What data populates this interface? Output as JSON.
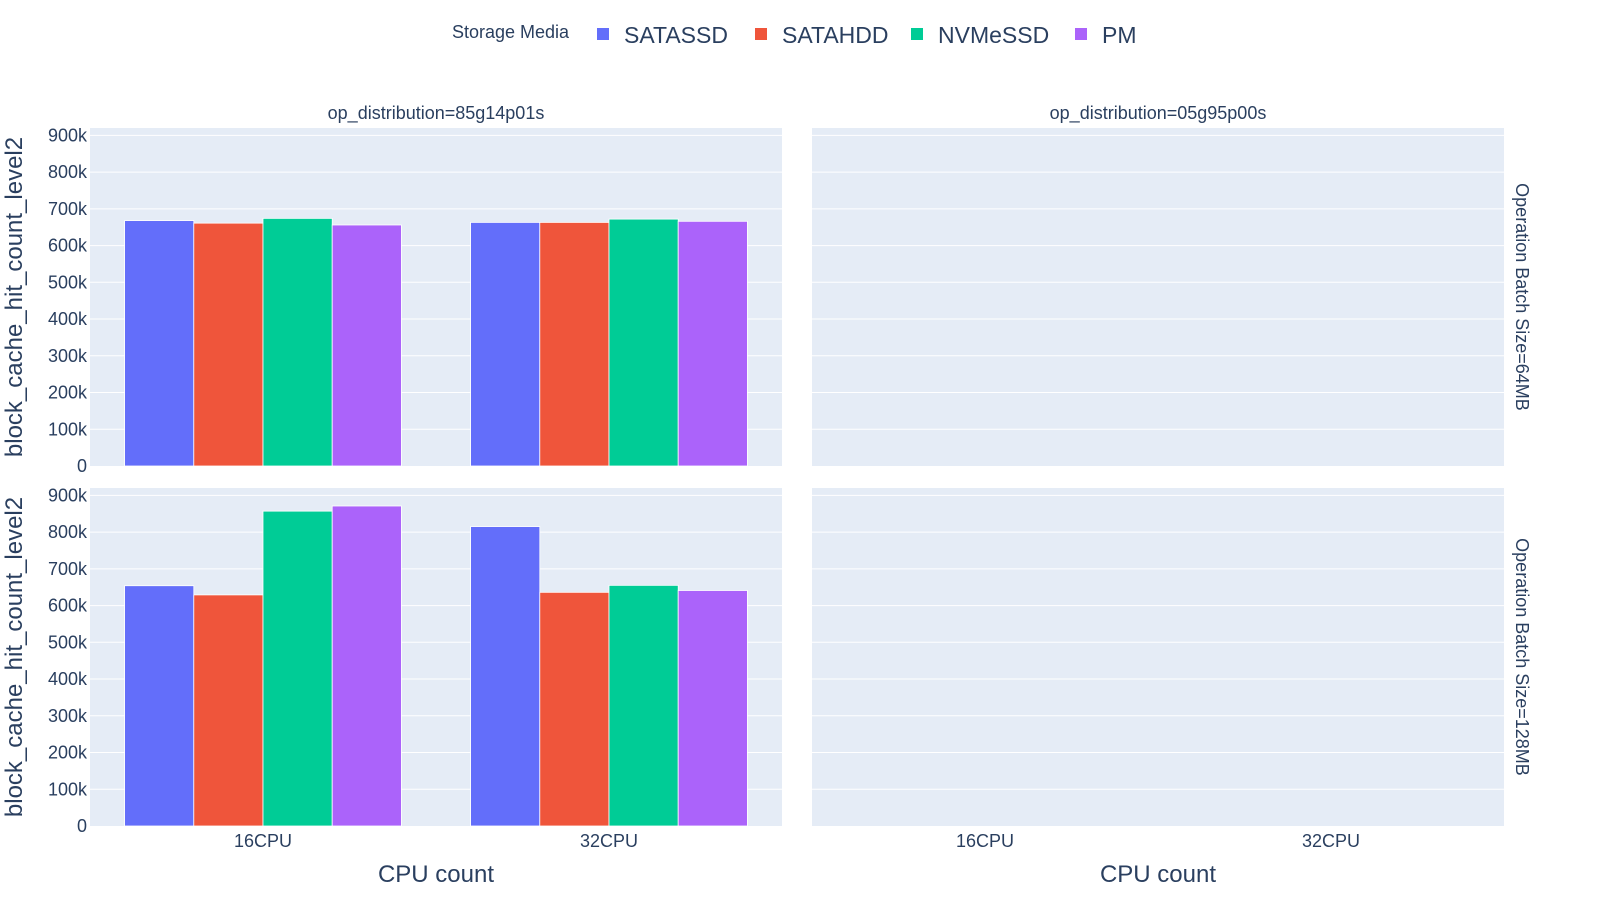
{
  "chart_data": {
    "type": "bar",
    "barmode": "group",
    "legend": {
      "title": "Storage Media",
      "placement": "top-center",
      "entries": [
        {
          "name": "SATASSD",
          "color": "#636efa"
        },
        {
          "name": "SATAHDD",
          "color": "#ef553b"
        },
        {
          "name": "NVMeSSD",
          "color": "#00cc96"
        },
        {
          "name": "PM",
          "color": "#ab63fa"
        }
      ]
    },
    "categories": [
      "16CPU",
      "32CPU"
    ],
    "xlabel": "CPU count",
    "ylabel": "block_cache_hit_count_level2",
    "ylim": [
      0,
      920000
    ],
    "yticks": [
      0,
      100000,
      200000,
      300000,
      400000,
      500000,
      600000,
      700000,
      800000,
      900000
    ],
    "ytick_labels": [
      "0",
      "100k",
      "200k",
      "300k",
      "400k",
      "500k",
      "600k",
      "700k",
      "800k",
      "900k"
    ],
    "grid": true,
    "column_facets": [
      "op_distribution=85g14p01s",
      "op_distribution=05g95p00s"
    ],
    "row_facets": [
      "Operation Batch Size=64MB",
      "Operation Batch Size=128MB"
    ],
    "panels": [
      {
        "row": 0,
        "col": 0,
        "series": [
          {
            "name": "SATASSD",
            "values": [
              668000,
              663000
            ]
          },
          {
            "name": "SATAHDD",
            "values": [
              661000,
              663000
            ]
          },
          {
            "name": "NVMeSSD",
            "values": [
              674000,
              672000
            ]
          },
          {
            "name": "PM",
            "values": [
              656000,
              666000
            ]
          }
        ]
      },
      {
        "row": 0,
        "col": 1,
        "series": []
      },
      {
        "row": 1,
        "col": 0,
        "series": [
          {
            "name": "SATASSD",
            "values": [
              654000,
              815000
            ]
          },
          {
            "name": "SATAHDD",
            "values": [
              629000,
              636000
            ]
          },
          {
            "name": "NVMeSSD",
            "values": [
              857000,
              655000
            ]
          },
          {
            "name": "PM",
            "values": [
              871000,
              641000
            ]
          }
        ]
      },
      {
        "row": 1,
        "col": 1,
        "series": []
      }
    ]
  }
}
